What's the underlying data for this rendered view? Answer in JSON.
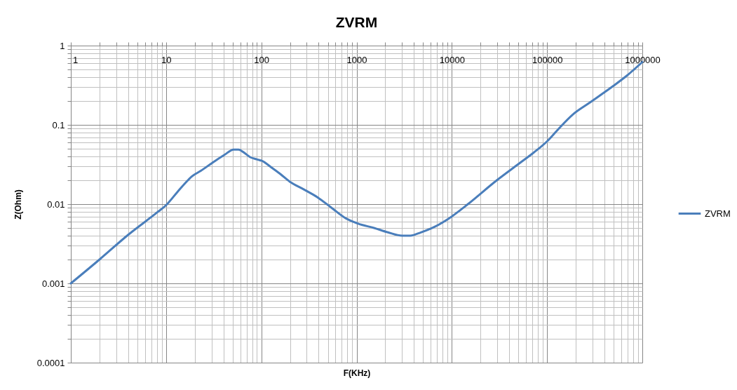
{
  "chart_data": {
    "type": "line",
    "title": "ZVRM",
    "xlabel": "F(KHz)",
    "ylabel": "Z(Ohm)",
    "log": "xy",
    "x": [
      1,
      2,
      4,
      8,
      10,
      13.2,
      16.6,
      18.6,
      23.3,
      30.9,
      41,
      51.4,
      57.6,
      64.4,
      76.3,
      90.5,
      101,
      127,
      159,
      200,
      280,
      393,
      552,
      774,
      1028,
      1525,
      2140,
      3000,
      3665,
      4730,
      6640,
      9310,
      14600,
      28900,
      50700,
      71200,
      100000,
      133000,
      186000,
      277000,
      487000,
      682000,
      1000000
    ],
    "series": [
      {
        "name": "ZVRM",
        "color": "#4a7ebb",
        "values": [
          0.001,
          0.002,
          0.0041,
          0.0078,
          0.0097,
          0.0143,
          0.0195,
          0.0223,
          0.0264,
          0.0335,
          0.0419,
          0.0487,
          0.0487,
          0.0455,
          0.0392,
          0.0366,
          0.0352,
          0.0292,
          0.0239,
          0.0191,
          0.0153,
          0.0121,
          0.0089,
          0.0066,
          0.0057,
          0.005,
          0.0044,
          0.004,
          0.004,
          0.0044,
          0.0052,
          0.0066,
          0.0099,
          0.0195,
          0.0324,
          0.044,
          0.062,
          0.09,
          0.135,
          0.189,
          0.305,
          0.414,
          0.62
        ]
      }
    ],
    "xlim": [
      1,
      1000000
    ],
    "ylim": [
      0.0001,
      1
    ],
    "xticks": [
      1,
      {
        "value": 2,
        "label": null
      },
      {
        "value": 3,
        "label": null
      },
      {
        "value": 4,
        "label": null
      },
      {
        "value": 5,
        "label": null
      },
      {
        "value": 6,
        "label": null
      },
      {
        "value": 7,
        "label": null
      },
      {
        "value": 8,
        "label": null
      },
      {
        "value": 9,
        "label": null
      },
      10,
      {
        "value": 20,
        "label": null
      },
      {
        "value": 30,
        "label": null
      },
      {
        "value": 40,
        "label": null
      },
      {
        "value": 50,
        "label": null
      },
      {
        "value": 60,
        "label": null
      },
      {
        "value": 70,
        "label": null
      },
      {
        "value": 80,
        "label": null
      },
      {
        "value": 90,
        "label": null
      },
      100,
      {
        "value": 200,
        "label": null
      },
      {
        "value": 300,
        "label": null
      },
      {
        "value": 400,
        "label": null
      },
      {
        "value": 500,
        "label": null
      },
      {
        "value": 600,
        "label": null
      },
      {
        "value": 700,
        "label": null
      },
      {
        "value": 800,
        "label": null
      },
      {
        "value": 900,
        "label": null
      },
      1000,
      {
        "value": 2000,
        "label": null
      },
      {
        "value": 3000,
        "label": null
      },
      {
        "value": 4000,
        "label": null
      },
      {
        "value": 5000,
        "label": null
      },
      {
        "value": 6000,
        "label": null
      },
      {
        "value": 7000,
        "label": null
      },
      {
        "value": 8000,
        "label": null
      },
      {
        "value": 9000,
        "label": null
      },
      10000,
      {
        "value": 20000,
        "label": null
      },
      {
        "value": 30000,
        "label": null
      },
      {
        "value": 40000,
        "label": null
      },
      {
        "value": 50000,
        "label": null
      },
      {
        "value": 60000,
        "label": null
      },
      {
        "value": 70000,
        "label": null
      },
      {
        "value": 80000,
        "label": null
      },
      {
        "value": 90000,
        "label": null
      },
      100000,
      {
        "value": 200000,
        "label": null
      },
      {
        "value": 300000,
        "label": null
      },
      {
        "value": 400000,
        "label": null
      },
      {
        "value": 500000,
        "label": null
      },
      {
        "value": 600000,
        "label": null
      },
      {
        "value": 700000,
        "label": null
      },
      {
        "value": 800000,
        "label": null
      },
      {
        "value": 900000,
        "label": null
      },
      1000000
    ],
    "yticks": [
      0.0001,
      {
        "value": 0.0002,
        "label": null
      },
      {
        "value": 0.0003,
        "label": null
      },
      {
        "value": 0.0004,
        "label": null
      },
      {
        "value": 0.0005,
        "label": null
      },
      {
        "value": 0.0006,
        "label": null
      },
      {
        "value": 0.0007,
        "label": null
      },
      {
        "value": 0.0008,
        "label": null
      },
      {
        "value": 0.0009,
        "label": null
      },
      0.001,
      {
        "value": 0.002,
        "label": null
      },
      {
        "value": 0.003,
        "label": null
      },
      {
        "value": 0.004,
        "label": null
      },
      {
        "value": 0.005,
        "label": null
      },
      {
        "value": 0.006,
        "label": null
      },
      {
        "value": 0.007,
        "label": null
      },
      {
        "value": 0.008,
        "label": null
      },
      {
        "value": 0.009,
        "label": null
      },
      0.01,
      {
        "value": 0.02,
        "label": null
      },
      {
        "value": 0.03,
        "label": null
      },
      {
        "value": 0.04,
        "label": null
      },
      {
        "value": 0.05,
        "label": null
      },
      {
        "value": 0.06,
        "label": null
      },
      {
        "value": 0.07,
        "label": null
      },
      {
        "value": 0.08,
        "label": null
      },
      {
        "value": 0.09,
        "label": null
      },
      0.1,
      {
        "value": 0.2,
        "label": null
      },
      {
        "value": 0.3,
        "label": null
      },
      {
        "value": 0.4,
        "label": null
      },
      {
        "value": 0.5,
        "label": null
      },
      {
        "value": 0.6,
        "label": null
      },
      {
        "value": 0.7,
        "label": null
      },
      {
        "value": 0.8,
        "label": null
      },
      {
        "value": 0.9,
        "label": null
      },
      1
    ],
    "grid": true,
    "legend": "right",
    "line_style": "solid"
  }
}
